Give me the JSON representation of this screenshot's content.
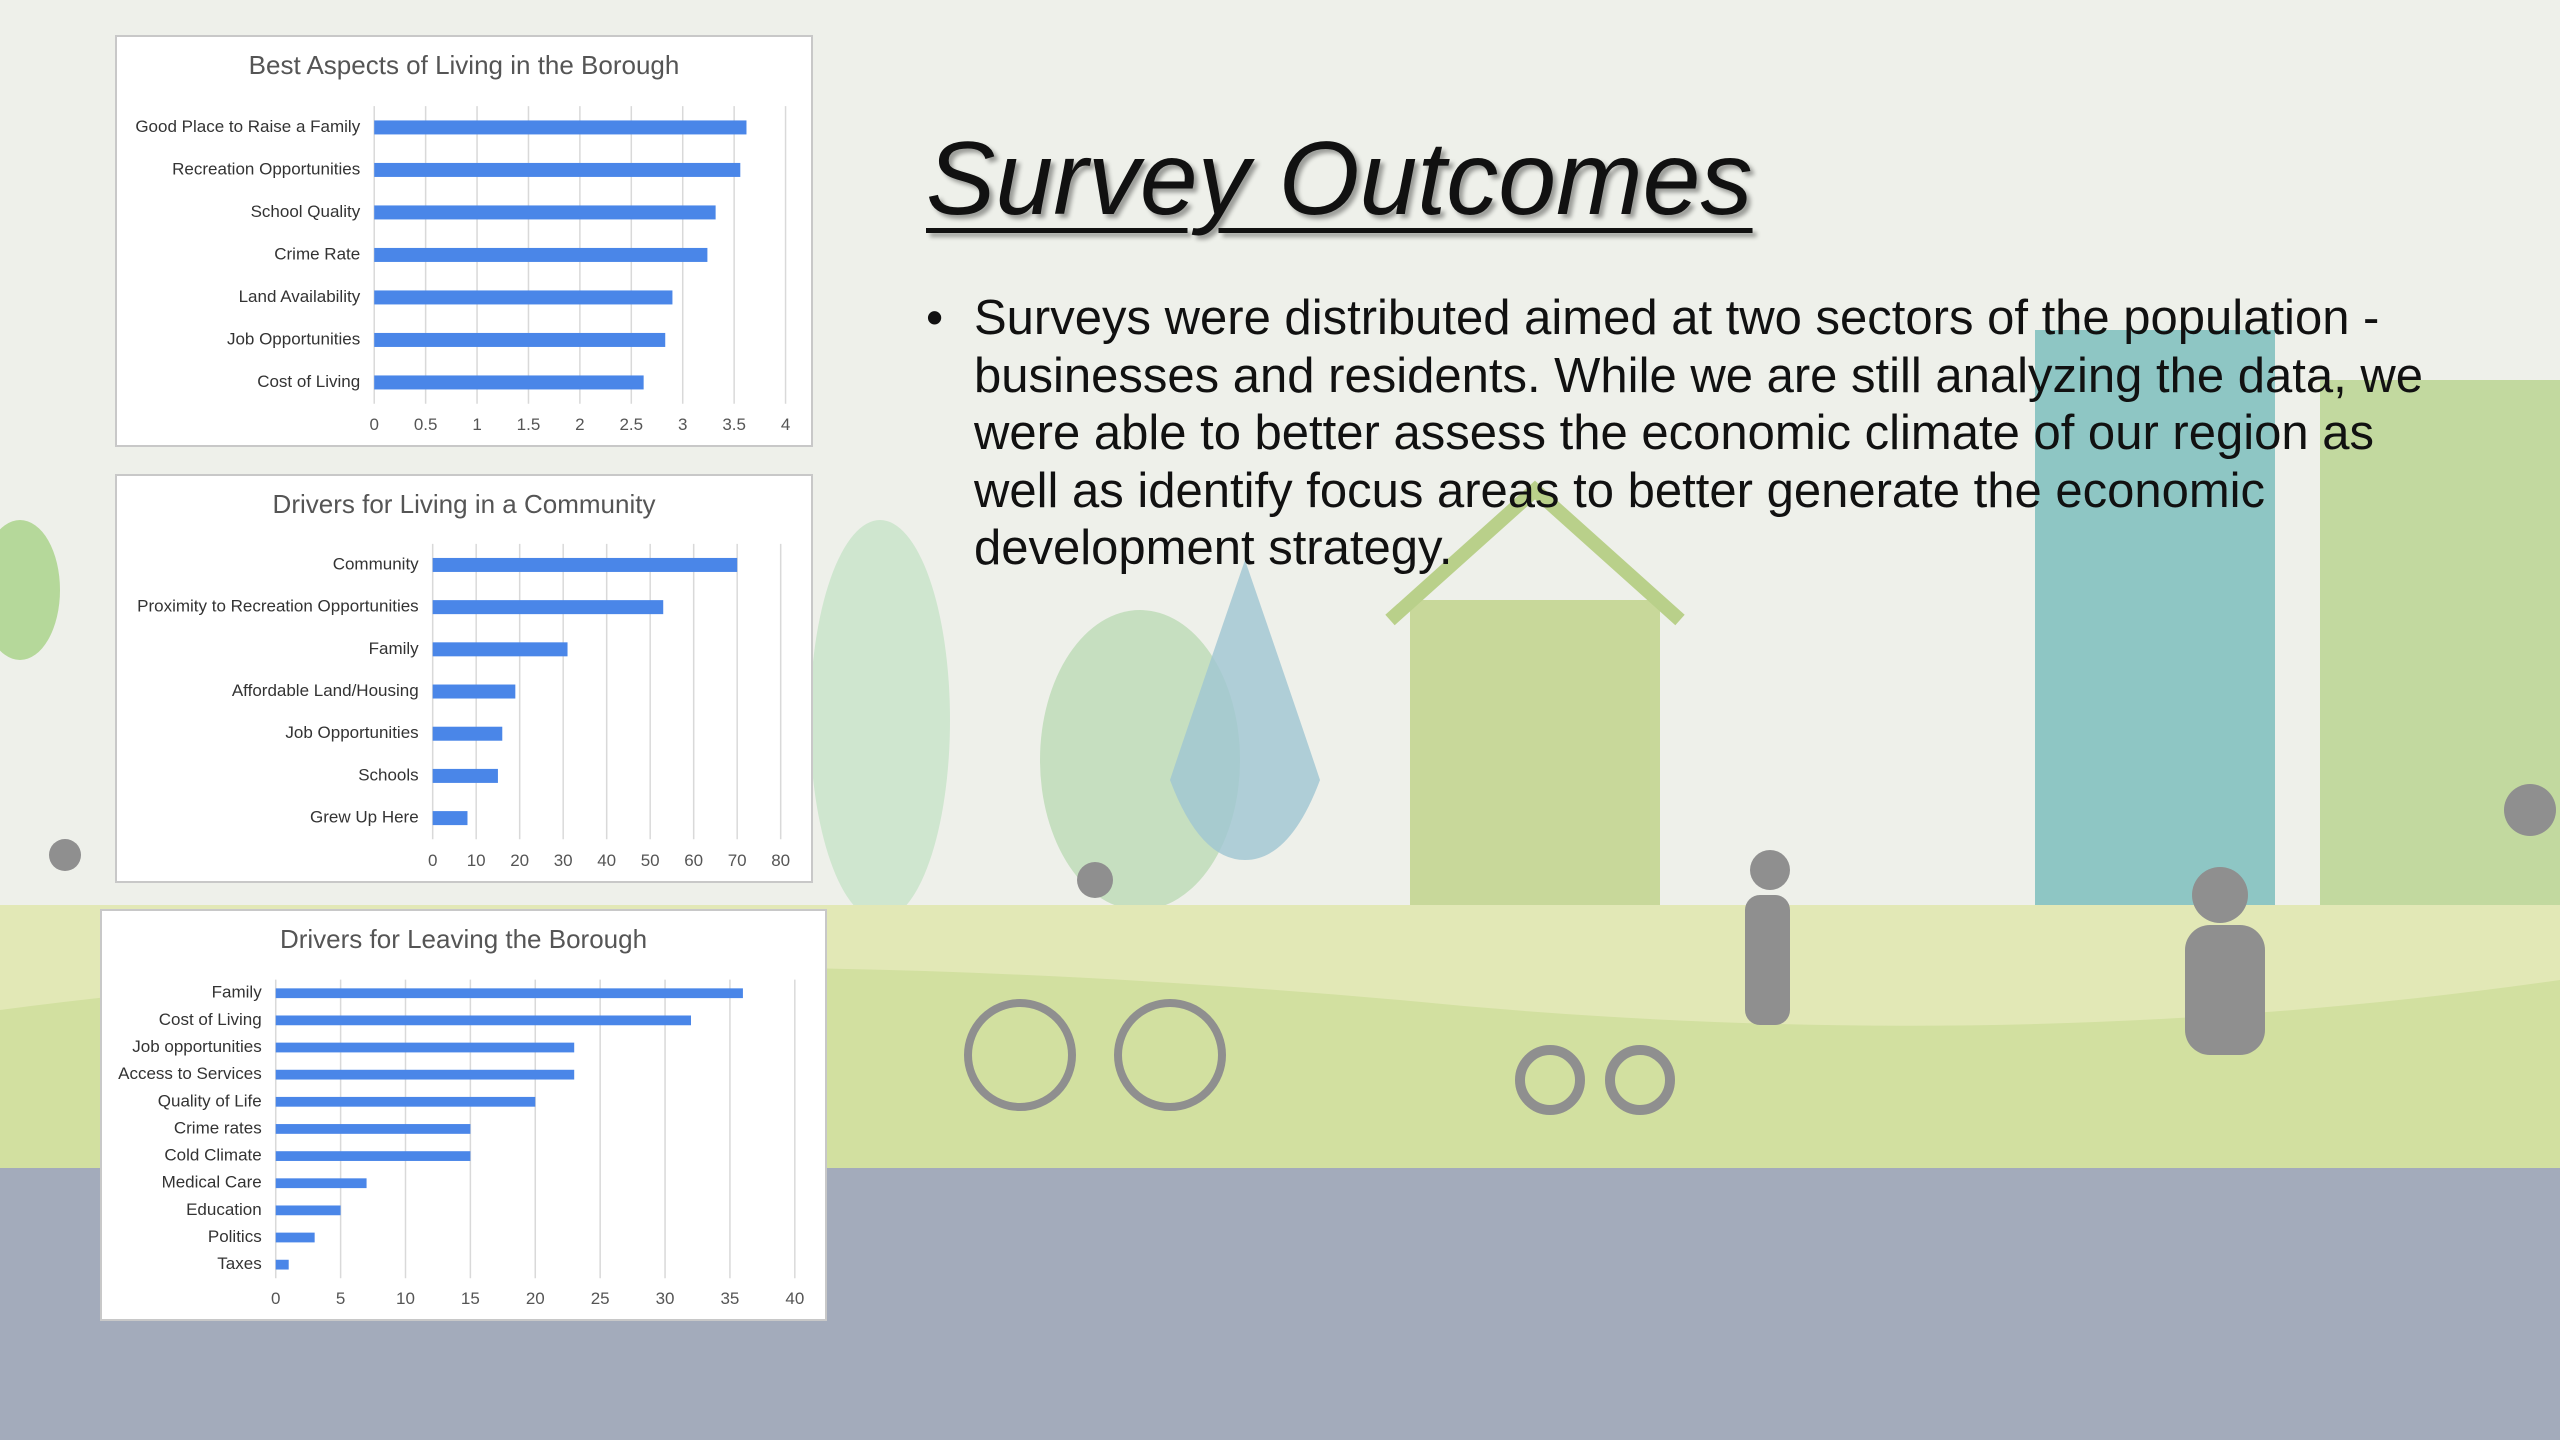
{
  "slide": {
    "title": "Survey Outcomes",
    "body": "Surveys were distributed aimed at two sectors of the population - businesses and residents.  While we are still analyzing the data, we were able to better assess the economic climate of our region as well as identify focus areas to better generate  the economic development strategy."
  },
  "chart_data": [
    {
      "type": "hbar",
      "title": "Best Aspects of Living in the Borough",
      "categories": [
        "Good Place to Raise a Family",
        "Recreation Opportunities",
        "School Quality",
        "Crime Rate",
        "Land Availability",
        "Job Opportunities",
        "Cost of Living"
      ],
      "values": [
        3.62,
        3.56,
        3.32,
        3.24,
        2.9,
        2.83,
        2.62
      ],
      "color": "#4a86e8",
      "xlim": [
        0,
        4
      ],
      "xticks": [
        0,
        0.5,
        1,
        1.5,
        2,
        2.5,
        3,
        3.5,
        4
      ],
      "grid": true
    },
    {
      "type": "hbar",
      "title": "Drivers for Living in a Community",
      "categories": [
        "Community",
        "Proximity to Recreation Opportunities",
        "Family",
        "Affordable Land/Housing",
        "Job Opportunities",
        "Schools",
        "Grew Up Here"
      ],
      "values": [
        70,
        53,
        31,
        19,
        16,
        15,
        8
      ],
      "color": "#4a86e8",
      "xlim": [
        0,
        80
      ],
      "xticks": [
        0,
        10,
        20,
        30,
        40,
        50,
        60,
        70,
        80
      ],
      "grid": true
    },
    {
      "type": "hbar",
      "title": "Drivers for Leaving the Borough",
      "categories": [
        "Family",
        "Cost of Living",
        "Job opportunities",
        "Access to Services",
        "Quality of Life",
        "Crime rates",
        "Cold Climate",
        "Medical Care",
        "Education",
        "Politics",
        "Taxes"
      ],
      "values": [
        36,
        32,
        23,
        23,
        20,
        15,
        15,
        7,
        5,
        3,
        1
      ],
      "color": "#4a86e8",
      "xlim": [
        0,
        40
      ],
      "xticks": [
        0,
        5,
        10,
        15,
        20,
        25,
        30,
        35,
        40
      ],
      "grid": true
    }
  ]
}
